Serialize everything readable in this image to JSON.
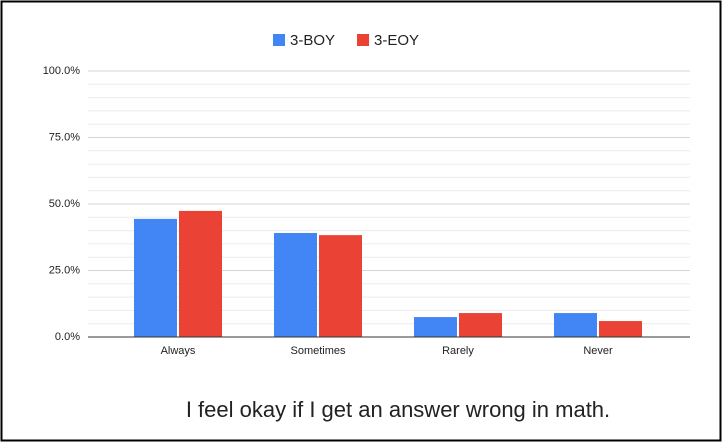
{
  "chart_data": {
    "type": "bar",
    "title": "I feel okay if I get an answer wrong in math.",
    "categories": [
      "Always",
      "Sometimes",
      "Rarely",
      "Never"
    ],
    "series": [
      {
        "name": "3-BOY",
        "color": "#4285f4",
        "values": [
          44.4,
          39.1,
          7.5,
          9.0
        ]
      },
      {
        "name": "3-EOY",
        "color": "#ea4335",
        "values": [
          47.4,
          38.3,
          9.0,
          6.0
        ]
      }
    ],
    "ylim": [
      0,
      100
    ],
    "yticks": [
      {
        "value": 0,
        "label": "0.0%"
      },
      {
        "value": 25,
        "label": "25.0%"
      },
      {
        "value": 50,
        "label": "50.0%"
      },
      {
        "value": 75,
        "label": "75.0%"
      },
      {
        "value": 100,
        "label": "100.0%"
      }
    ],
    "grid": true,
    "minor_gridlines": 4,
    "legend": "top"
  }
}
